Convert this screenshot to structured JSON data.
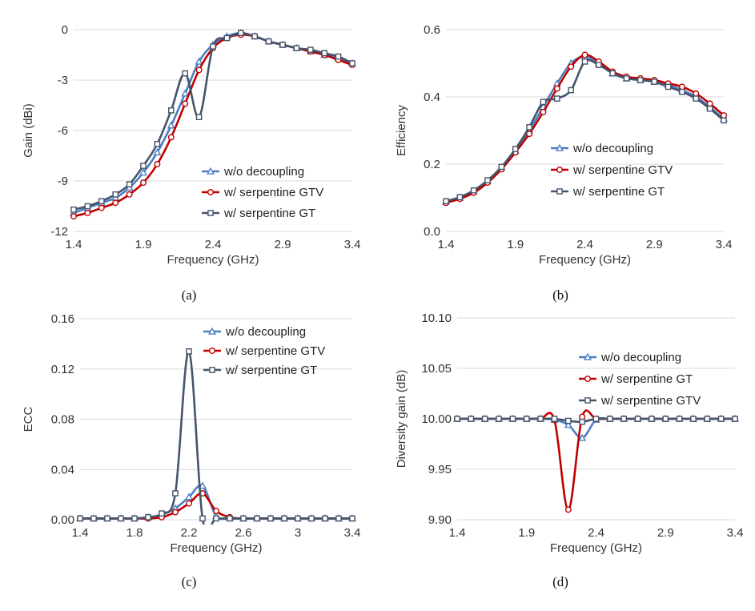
{
  "colors": {
    "blue": "#4a7ec2",
    "red": "#c00000",
    "navy": "#44546a",
    "grid": "#d9d9d9",
    "text": "#333333"
  },
  "chart_data": [
    {
      "type": "line",
      "caption": "(a)",
      "xlabel": "Frequency (GHz)",
      "ylabel": "Gain (dBi)",
      "xlim": [
        1.4,
        3.4
      ],
      "ylim": [
        -12,
        0
      ],
      "xticks": [
        1.4,
        1.9,
        2.4,
        2.9,
        3.4
      ],
      "xtick_labels": [
        "1.4",
        "1.9",
        "2.4",
        "2.9",
        "3.4"
      ],
      "yticks": [
        -12,
        -9,
        -6,
        -3,
        0
      ],
      "ytick_labels": [
        "-12",
        "-9",
        "-6",
        "-3",
        "0"
      ],
      "grid": "horizontal",
      "legend_position": "bottom-right",
      "series": [
        {
          "name": "w/o decoupling",
          "color_key": "blue",
          "marker": "triangle",
          "x": [
            1.4,
            1.5,
            1.6,
            1.7,
            1.8,
            1.9,
            2.0,
            2.1,
            2.2,
            2.3,
            2.4,
            2.5,
            2.6,
            2.7,
            2.8,
            2.9,
            3.0,
            3.1,
            3.2,
            3.3,
            3.4
          ],
          "y": [
            -10.9,
            -10.6,
            -10.3,
            -10.0,
            -9.4,
            -8.5,
            -7.3,
            -5.7,
            -3.8,
            -1.9,
            -0.9,
            -0.4,
            -0.2,
            -0.4,
            -0.7,
            -0.9,
            -1.1,
            -1.3,
            -1.5,
            -1.7,
            -2.0
          ]
        },
        {
          "name": "w/ serpentine GTV",
          "color_key": "red",
          "marker": "circle",
          "x": [
            1.4,
            1.5,
            1.6,
            1.7,
            1.8,
            1.9,
            2.0,
            2.1,
            2.2,
            2.3,
            2.4,
            2.5,
            2.6,
            2.7,
            2.8,
            2.9,
            3.0,
            3.1,
            3.2,
            3.3,
            3.4
          ],
          "y": [
            -11.1,
            -10.9,
            -10.6,
            -10.3,
            -9.8,
            -9.1,
            -8.0,
            -6.4,
            -4.4,
            -2.4,
            -1.1,
            -0.5,
            -0.3,
            -0.4,
            -0.7,
            -0.9,
            -1.1,
            -1.3,
            -1.5,
            -1.8,
            -2.1
          ]
        },
        {
          "name": "w/ serpentine GT",
          "color_key": "navy",
          "marker": "square",
          "x": [
            1.4,
            1.5,
            1.6,
            1.7,
            1.8,
            1.9,
            2.0,
            2.1,
            2.2,
            2.3,
            2.4,
            2.5,
            2.6,
            2.7,
            2.8,
            2.9,
            3.0,
            3.1,
            3.2,
            3.3,
            3.4
          ],
          "y": [
            -10.7,
            -10.5,
            -10.2,
            -9.8,
            -9.2,
            -8.1,
            -6.8,
            -4.8,
            -2.6,
            -5.2,
            -1.0,
            -0.5,
            -0.2,
            -0.4,
            -0.7,
            -0.9,
            -1.1,
            -1.2,
            -1.4,
            -1.6,
            -2.0
          ]
        }
      ]
    },
    {
      "type": "line",
      "caption": "(b)",
      "xlabel": "Frequency (GHz)",
      "ylabel": "Efficiency",
      "xlim": [
        1.4,
        3.4
      ],
      "ylim": [
        0,
        0.6
      ],
      "xticks": [
        1.4,
        1.9,
        2.4,
        2.9,
        3.4
      ],
      "xtick_labels": [
        "1.4",
        "1.9",
        "2.4",
        "2.9",
        "3.4"
      ],
      "yticks": [
        0,
        0.2,
        0.4,
        0.6
      ],
      "ytick_labels": [
        "0.0",
        "0.2",
        "0.4",
        "0.6"
      ],
      "grid": "horizontal",
      "legend_position": "center-right",
      "series": [
        {
          "name": "w/o decoupling",
          "color_key": "blue",
          "marker": "triangle",
          "x": [
            1.4,
            1.5,
            1.6,
            1.7,
            1.8,
            1.9,
            2.0,
            2.1,
            2.2,
            2.3,
            2.4,
            2.5,
            2.6,
            2.7,
            2.8,
            2.9,
            3.0,
            3.1,
            3.2,
            3.3,
            3.4
          ],
          "y": [
            0.088,
            0.1,
            0.12,
            0.15,
            0.19,
            0.24,
            0.3,
            0.37,
            0.44,
            0.5,
            0.52,
            0.5,
            0.47,
            0.455,
            0.45,
            0.445,
            0.435,
            0.42,
            0.4,
            0.37,
            0.335
          ]
        },
        {
          "name": "w/ serpentine GTV",
          "color_key": "red",
          "marker": "circle",
          "x": [
            1.4,
            1.5,
            1.6,
            1.7,
            1.8,
            1.9,
            2.0,
            2.1,
            2.2,
            2.3,
            2.4,
            2.5,
            2.6,
            2.7,
            2.8,
            2.9,
            3.0,
            3.1,
            3.2,
            3.3,
            3.4
          ],
          "y": [
            0.085,
            0.097,
            0.115,
            0.145,
            0.185,
            0.235,
            0.29,
            0.355,
            0.425,
            0.49,
            0.525,
            0.505,
            0.475,
            0.46,
            0.455,
            0.45,
            0.44,
            0.43,
            0.41,
            0.38,
            0.345
          ]
        },
        {
          "name": "w/ serpentine GT",
          "color_key": "navy",
          "marker": "square",
          "x": [
            1.4,
            1.5,
            1.6,
            1.7,
            1.8,
            1.9,
            2.0,
            2.1,
            2.2,
            2.3,
            2.4,
            2.5,
            2.6,
            2.7,
            2.8,
            2.9,
            3.0,
            3.1,
            3.2,
            3.3,
            3.4
          ],
          "y": [
            0.09,
            0.102,
            0.122,
            0.152,
            0.192,
            0.245,
            0.31,
            0.385,
            0.395,
            0.42,
            0.505,
            0.495,
            0.47,
            0.455,
            0.45,
            0.445,
            0.43,
            0.415,
            0.395,
            0.365,
            0.33
          ]
        }
      ]
    },
    {
      "type": "line",
      "caption": "(c)",
      "xlabel": "Frequency (GHz)",
      "ylabel": "ECC",
      "xlim": [
        1.4,
        3.4
      ],
      "ylim": [
        0,
        0.16
      ],
      "xticks": [
        1.4,
        1.8,
        2.2,
        2.6,
        3.0,
        3.4
      ],
      "xtick_labels": [
        "1.4",
        "1.8",
        "2.2",
        "2.6",
        "3",
        "3.4"
      ],
      "yticks": [
        0,
        0.04,
        0.08,
        0.12,
        0.16
      ],
      "ytick_labels": [
        "0.00",
        "0.04",
        "0.08",
        "0.12",
        "0.16"
      ],
      "grid": "horizontal",
      "legend_position": "top-right",
      "series": [
        {
          "name": "w/o decoupling",
          "color_key": "blue",
          "marker": "triangle",
          "x": [
            1.4,
            1.5,
            1.6,
            1.7,
            1.8,
            1.9,
            2.0,
            2.1,
            2.2,
            2.3,
            2.4,
            2.5,
            2.6,
            2.7,
            2.8,
            2.9,
            3.0,
            3.1,
            3.2,
            3.3,
            3.4
          ],
          "y": [
            0.001,
            0.001,
            0.001,
            0.001,
            0.001,
            0.002,
            0.004,
            0.009,
            0.018,
            0.027,
            0.003,
            0.001,
            0.001,
            0.001,
            0.001,
            0.001,
            0.001,
            0.001,
            0.001,
            0.001,
            0.001
          ]
        },
        {
          "name": "w/ serpentine GTV",
          "color_key": "red",
          "marker": "circle",
          "x": [
            1.4,
            1.5,
            1.6,
            1.7,
            1.8,
            1.9,
            2.0,
            2.1,
            2.2,
            2.3,
            2.4,
            2.5,
            2.6,
            2.7,
            2.8,
            2.9,
            3.0,
            3.1,
            3.2,
            3.3,
            3.4
          ],
          "y": [
            0.001,
            0.001,
            0.001,
            0.001,
            0.001,
            0.001,
            0.002,
            0.006,
            0.013,
            0.021,
            0.007,
            0.002,
            0.001,
            0.001,
            0.001,
            0.001,
            0.001,
            0.001,
            0.001,
            0.001,
            0.001
          ]
        },
        {
          "name": "w/ serpentine GT",
          "color_key": "navy",
          "marker": "square",
          "x": [
            1.4,
            1.5,
            1.6,
            1.7,
            1.8,
            1.9,
            2.0,
            2.1,
            2.2,
            2.3,
            2.4,
            2.5,
            2.6,
            2.7,
            2.8,
            2.9,
            3.0,
            3.1,
            3.2,
            3.3,
            3.4
          ],
          "y": [
            0.001,
            0.001,
            0.001,
            0.001,
            0.001,
            0.002,
            0.005,
            0.021,
            0.134,
            0.001,
            0.001,
            0.001,
            0.001,
            0.001,
            0.001,
            0.001,
            0.001,
            0.001,
            0.001,
            0.001,
            0.001
          ]
        }
      ]
    },
    {
      "type": "line",
      "caption": "(d)",
      "xlabel": "Frequency (GHz)",
      "ylabel": "Diversity gain (dB)",
      "xlim": [
        1.4,
        3.4
      ],
      "ylim": [
        9.9,
        10.1
      ],
      "xticks": [
        1.4,
        1.9,
        2.4,
        2.9,
        3.4
      ],
      "xtick_labels": [
        "1.4",
        "1.9",
        "2.4",
        "2.9",
        "3.4"
      ],
      "yticks": [
        9.9,
        9.95,
        10.0,
        10.05,
        10.1
      ],
      "ytick_labels": [
        "9.90",
        "9.95",
        "10.00",
        "10.05",
        "10.10"
      ],
      "grid": "horizontal",
      "legend_position": "top-right",
      "series": [
        {
          "name": "w/o decoupling",
          "color_key": "blue",
          "marker": "triangle",
          "x": [
            1.4,
            1.5,
            1.6,
            1.7,
            1.8,
            1.9,
            2.0,
            2.1,
            2.2,
            2.3,
            2.4,
            2.5,
            2.6,
            2.7,
            2.8,
            2.9,
            3.0,
            3.1,
            3.2,
            3.3,
            3.4
          ],
          "y": [
            10.0,
            10.0,
            10.0,
            10.0,
            10.0,
            10.0,
            10.0,
            9.999,
            9.994,
            9.981,
            9.999,
            10.0,
            10.0,
            10.0,
            10.0,
            10.0,
            10.0,
            10.0,
            10.0,
            10.0,
            10.0
          ]
        },
        {
          "name": "w/ serpentine GT",
          "color_key": "red",
          "marker": "circle",
          "x": [
            1.4,
            1.5,
            1.6,
            1.7,
            1.8,
            1.9,
            2.0,
            2.1,
            2.2,
            2.3,
            2.4,
            2.5,
            2.6,
            2.7,
            2.8,
            2.9,
            3.0,
            3.1,
            3.2,
            3.3,
            3.4
          ],
          "y": [
            10.0,
            10.0,
            10.0,
            10.0,
            10.0,
            10.0,
            10.0,
            9.999,
            9.91,
            10.002,
            10.0,
            10.0,
            10.0,
            10.0,
            10.0,
            10.0,
            10.0,
            10.0,
            10.0,
            10.0,
            10.0
          ]
        },
        {
          "name": "w/ serpentine GTV",
          "color_key": "navy",
          "marker": "square",
          "x": [
            1.4,
            1.5,
            1.6,
            1.7,
            1.8,
            1.9,
            2.0,
            2.1,
            2.2,
            2.3,
            2.4,
            2.5,
            2.6,
            2.7,
            2.8,
            2.9,
            3.0,
            3.1,
            3.2,
            3.3,
            3.4
          ],
          "y": [
            10.0,
            10.0,
            10.0,
            10.0,
            10.0,
            10.0,
            10.0,
            10.0,
            9.998,
            9.997,
            10.0,
            10.0,
            10.0,
            10.0,
            10.0,
            10.0,
            10.0,
            10.0,
            10.0,
            10.0,
            10.0
          ]
        }
      ]
    }
  ]
}
